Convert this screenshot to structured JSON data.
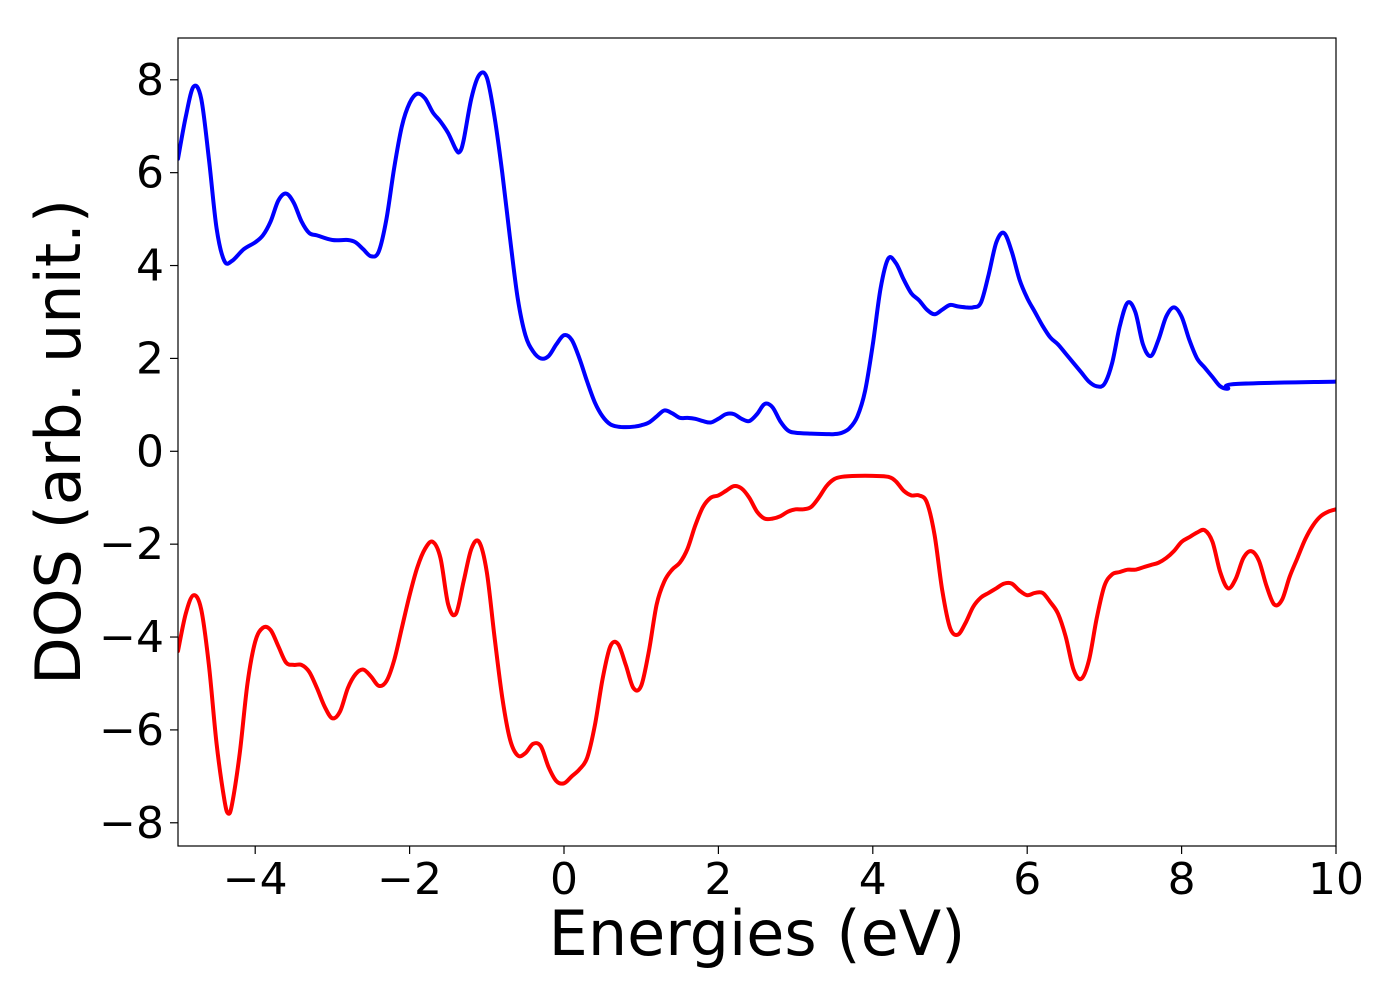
{
  "chart_data": {
    "type": "line",
    "xlabel": "Energies (eV)",
    "ylabel": "DOS (arb. unit.)",
    "xlim": [
      -5,
      10
    ],
    "ylim": [
      -8.5,
      8.9
    ],
    "xticks": [
      -4,
      -2,
      0,
      2,
      4,
      6,
      8,
      10
    ],
    "xtick_labels": [
      "−4",
      "−2",
      "0",
      "2",
      "4",
      "6",
      "8",
      "10"
    ],
    "yticks": [
      8,
      6,
      4,
      2,
      0,
      -2,
      -4,
      -6,
      -8
    ],
    "ytick_labels": [
      "8",
      "6",
      "4",
      "2",
      "0",
      "−2",
      "−4",
      "−6",
      "−8"
    ],
    "grid": false,
    "legend": "none",
    "series": [
      {
        "color": "#0000ff",
        "points": [
          [
            -5.0,
            6.3
          ],
          [
            -4.9,
            7.2
          ],
          [
            -4.8,
            7.85
          ],
          [
            -4.7,
            7.6
          ],
          [
            -4.6,
            6.3
          ],
          [
            -4.5,
            4.8
          ],
          [
            -4.4,
            4.1
          ],
          [
            -4.3,
            4.1
          ],
          [
            -4.15,
            4.35
          ],
          [
            -4.0,
            4.5
          ],
          [
            -3.9,
            4.65
          ],
          [
            -3.8,
            4.95
          ],
          [
            -3.7,
            5.4
          ],
          [
            -3.6,
            5.55
          ],
          [
            -3.5,
            5.35
          ],
          [
            -3.4,
            4.95
          ],
          [
            -3.3,
            4.7
          ],
          [
            -3.2,
            4.65
          ],
          [
            -3.0,
            4.55
          ],
          [
            -2.8,
            4.55
          ],
          [
            -2.7,
            4.5
          ],
          [
            -2.6,
            4.35
          ],
          [
            -2.5,
            4.2
          ],
          [
            -2.4,
            4.3
          ],
          [
            -2.3,
            5.0
          ],
          [
            -2.2,
            6.1
          ],
          [
            -2.1,
            7.0
          ],
          [
            -2.0,
            7.5
          ],
          [
            -1.9,
            7.7
          ],
          [
            -1.8,
            7.6
          ],
          [
            -1.7,
            7.3
          ],
          [
            -1.6,
            7.1
          ],
          [
            -1.5,
            6.85
          ],
          [
            -1.4,
            6.5
          ],
          [
            -1.35,
            6.45
          ],
          [
            -1.3,
            6.7
          ],
          [
            -1.2,
            7.6
          ],
          [
            -1.1,
            8.1
          ],
          [
            -1.0,
            8.05
          ],
          [
            -0.9,
            7.2
          ],
          [
            -0.8,
            6.0
          ],
          [
            -0.7,
            4.6
          ],
          [
            -0.6,
            3.3
          ],
          [
            -0.5,
            2.5
          ],
          [
            -0.4,
            2.15
          ],
          [
            -0.3,
            2.0
          ],
          [
            -0.2,
            2.05
          ],
          [
            -0.1,
            2.3
          ],
          [
            0.0,
            2.5
          ],
          [
            0.1,
            2.4
          ],
          [
            0.2,
            2.0
          ],
          [
            0.3,
            1.5
          ],
          [
            0.4,
            1.05
          ],
          [
            0.5,
            0.75
          ],
          [
            0.6,
            0.58
          ],
          [
            0.7,
            0.53
          ],
          [
            0.8,
            0.52
          ],
          [
            0.9,
            0.53
          ],
          [
            1.0,
            0.56
          ],
          [
            1.1,
            0.62
          ],
          [
            1.2,
            0.75
          ],
          [
            1.3,
            0.88
          ],
          [
            1.4,
            0.82
          ],
          [
            1.5,
            0.72
          ],
          [
            1.6,
            0.72
          ],
          [
            1.7,
            0.7
          ],
          [
            1.8,
            0.65
          ],
          [
            1.9,
            0.62
          ],
          [
            2.0,
            0.7
          ],
          [
            2.1,
            0.8
          ],
          [
            2.2,
            0.8
          ],
          [
            2.3,
            0.7
          ],
          [
            2.4,
            0.65
          ],
          [
            2.5,
            0.8
          ],
          [
            2.6,
            1.02
          ],
          [
            2.7,
            0.95
          ],
          [
            2.8,
            0.65
          ],
          [
            2.9,
            0.45
          ],
          [
            3.0,
            0.4
          ],
          [
            3.2,
            0.38
          ],
          [
            3.4,
            0.37
          ],
          [
            3.5,
            0.37
          ],
          [
            3.6,
            0.4
          ],
          [
            3.7,
            0.5
          ],
          [
            3.8,
            0.75
          ],
          [
            3.9,
            1.3
          ],
          [
            4.0,
            2.3
          ],
          [
            4.1,
            3.5
          ],
          [
            4.2,
            4.15
          ],
          [
            4.3,
            4.05
          ],
          [
            4.4,
            3.7
          ],
          [
            4.5,
            3.4
          ],
          [
            4.6,
            3.25
          ],
          [
            4.7,
            3.05
          ],
          [
            4.8,
            2.95
          ],
          [
            4.9,
            3.05
          ],
          [
            5.0,
            3.15
          ],
          [
            5.1,
            3.12
          ],
          [
            5.2,
            3.1
          ],
          [
            5.3,
            3.1
          ],
          [
            5.4,
            3.2
          ],
          [
            5.5,
            3.8
          ],
          [
            5.6,
            4.5
          ],
          [
            5.7,
            4.7
          ],
          [
            5.8,
            4.3
          ],
          [
            5.9,
            3.7
          ],
          [
            6.0,
            3.3
          ],
          [
            6.1,
            3.0
          ],
          [
            6.2,
            2.7
          ],
          [
            6.3,
            2.45
          ],
          [
            6.4,
            2.3
          ],
          [
            6.5,
            2.1
          ],
          [
            6.6,
            1.9
          ],
          [
            6.7,
            1.7
          ],
          [
            6.8,
            1.5
          ],
          [
            6.9,
            1.4
          ],
          [
            7.0,
            1.45
          ],
          [
            7.1,
            1.9
          ],
          [
            7.2,
            2.7
          ],
          [
            7.3,
            3.2
          ],
          [
            7.4,
            3.0
          ],
          [
            7.5,
            2.3
          ],
          [
            7.6,
            2.05
          ],
          [
            7.7,
            2.4
          ],
          [
            7.8,
            2.9
          ],
          [
            7.9,
            3.1
          ],
          [
            8.0,
            2.9
          ],
          [
            8.1,
            2.4
          ],
          [
            8.2,
            2.0
          ],
          [
            8.3,
            1.8
          ],
          [
            8.4,
            1.6
          ],
          [
            8.5,
            1.4
          ],
          [
            8.6,
            1.35
          ],
          [
            8.7,
            1.45
          ],
          [
            10.0,
            1.5
          ]
        ]
      },
      {
        "color": "#ff0000",
        "points": [
          [
            -5.0,
            -4.3
          ],
          [
            -4.9,
            -3.5
          ],
          [
            -4.8,
            -3.1
          ],
          [
            -4.7,
            -3.4
          ],
          [
            -4.6,
            -4.6
          ],
          [
            -4.5,
            -6.3
          ],
          [
            -4.4,
            -7.5
          ],
          [
            -4.35,
            -7.8
          ],
          [
            -4.3,
            -7.6
          ],
          [
            -4.2,
            -6.5
          ],
          [
            -4.1,
            -5.0
          ],
          [
            -4.0,
            -4.1
          ],
          [
            -3.9,
            -3.8
          ],
          [
            -3.8,
            -3.85
          ],
          [
            -3.7,
            -4.2
          ],
          [
            -3.6,
            -4.55
          ],
          [
            -3.5,
            -4.6
          ],
          [
            -3.4,
            -4.6
          ],
          [
            -3.3,
            -4.75
          ],
          [
            -3.2,
            -5.1
          ],
          [
            -3.1,
            -5.5
          ],
          [
            -3.0,
            -5.75
          ],
          [
            -2.9,
            -5.6
          ],
          [
            -2.8,
            -5.1
          ],
          [
            -2.7,
            -4.8
          ],
          [
            -2.6,
            -4.7
          ],
          [
            -2.5,
            -4.85
          ],
          [
            -2.4,
            -5.05
          ],
          [
            -2.3,
            -4.95
          ],
          [
            -2.2,
            -4.5
          ],
          [
            -2.1,
            -3.8
          ],
          [
            -2.0,
            -3.1
          ],
          [
            -1.9,
            -2.5
          ],
          [
            -1.8,
            -2.1
          ],
          [
            -1.7,
            -1.95
          ],
          [
            -1.6,
            -2.3
          ],
          [
            -1.5,
            -3.3
          ],
          [
            -1.4,
            -3.5
          ],
          [
            -1.3,
            -2.8
          ],
          [
            -1.2,
            -2.1
          ],
          [
            -1.1,
            -1.95
          ],
          [
            -1.0,
            -2.6
          ],
          [
            -0.9,
            -4.0
          ],
          [
            -0.8,
            -5.3
          ],
          [
            -0.7,
            -6.2
          ],
          [
            -0.6,
            -6.55
          ],
          [
            -0.5,
            -6.5
          ],
          [
            -0.4,
            -6.3
          ],
          [
            -0.3,
            -6.35
          ],
          [
            -0.2,
            -6.8
          ],
          [
            -0.1,
            -7.1
          ],
          [
            0.0,
            -7.15
          ],
          [
            0.1,
            -7.0
          ],
          [
            0.2,
            -6.85
          ],
          [
            0.3,
            -6.6
          ],
          [
            0.4,
            -5.9
          ],
          [
            0.5,
            -4.9
          ],
          [
            0.6,
            -4.2
          ],
          [
            0.7,
            -4.15
          ],
          [
            0.8,
            -4.6
          ],
          [
            0.9,
            -5.1
          ],
          [
            1.0,
            -5.05
          ],
          [
            1.1,
            -4.3
          ],
          [
            1.2,
            -3.3
          ],
          [
            1.3,
            -2.8
          ],
          [
            1.4,
            -2.55
          ],
          [
            1.5,
            -2.4
          ],
          [
            1.6,
            -2.1
          ],
          [
            1.7,
            -1.6
          ],
          [
            1.8,
            -1.2
          ],
          [
            1.9,
            -1.0
          ],
          [
            2.0,
            -0.95
          ],
          [
            2.1,
            -0.85
          ],
          [
            2.2,
            -0.75
          ],
          [
            2.3,
            -0.8
          ],
          [
            2.4,
            -1.0
          ],
          [
            2.5,
            -1.3
          ],
          [
            2.6,
            -1.45
          ],
          [
            2.7,
            -1.45
          ],
          [
            2.8,
            -1.4
          ],
          [
            2.9,
            -1.3
          ],
          [
            3.0,
            -1.25
          ],
          [
            3.1,
            -1.25
          ],
          [
            3.2,
            -1.2
          ],
          [
            3.3,
            -1.0
          ],
          [
            3.4,
            -0.75
          ],
          [
            3.5,
            -0.6
          ],
          [
            3.6,
            -0.55
          ],
          [
            3.8,
            -0.53
          ],
          [
            4.0,
            -0.53
          ],
          [
            4.2,
            -0.55
          ],
          [
            4.3,
            -0.65
          ],
          [
            4.4,
            -0.85
          ],
          [
            4.5,
            -0.95
          ],
          [
            4.6,
            -0.95
          ],
          [
            4.7,
            -1.1
          ],
          [
            4.8,
            -1.8
          ],
          [
            4.9,
            -3.0
          ],
          [
            5.0,
            -3.8
          ],
          [
            5.1,
            -3.95
          ],
          [
            5.2,
            -3.7
          ],
          [
            5.3,
            -3.35
          ],
          [
            5.4,
            -3.15
          ],
          [
            5.5,
            -3.05
          ],
          [
            5.6,
            -2.95
          ],
          [
            5.7,
            -2.85
          ],
          [
            5.8,
            -2.85
          ],
          [
            5.9,
            -3.0
          ],
          [
            6.0,
            -3.1
          ],
          [
            6.1,
            -3.05
          ],
          [
            6.2,
            -3.05
          ],
          [
            6.3,
            -3.25
          ],
          [
            6.4,
            -3.5
          ],
          [
            6.5,
            -4.0
          ],
          [
            6.6,
            -4.7
          ],
          [
            6.7,
            -4.9
          ],
          [
            6.8,
            -4.5
          ],
          [
            6.9,
            -3.6
          ],
          [
            7.0,
            -2.9
          ],
          [
            7.1,
            -2.65
          ],
          [
            7.2,
            -2.6
          ],
          [
            7.3,
            -2.55
          ],
          [
            7.4,
            -2.55
          ],
          [
            7.5,
            -2.5
          ],
          [
            7.6,
            -2.45
          ],
          [
            7.7,
            -2.4
          ],
          [
            7.8,
            -2.3
          ],
          [
            7.9,
            -2.15
          ],
          [
            8.0,
            -1.95
          ],
          [
            8.1,
            -1.85
          ],
          [
            8.2,
            -1.75
          ],
          [
            8.3,
            -1.7
          ],
          [
            8.4,
            -1.95
          ],
          [
            8.5,
            -2.6
          ],
          [
            8.6,
            -2.95
          ],
          [
            8.7,
            -2.75
          ],
          [
            8.8,
            -2.3
          ],
          [
            8.9,
            -2.15
          ],
          [
            9.0,
            -2.35
          ],
          [
            9.1,
            -2.9
          ],
          [
            9.2,
            -3.3
          ],
          [
            9.3,
            -3.2
          ],
          [
            9.4,
            -2.7
          ],
          [
            9.5,
            -2.3
          ],
          [
            9.6,
            -1.9
          ],
          [
            9.7,
            -1.6
          ],
          [
            9.8,
            -1.4
          ],
          [
            9.9,
            -1.3
          ],
          [
            10.0,
            -1.25
          ]
        ]
      }
    ]
  }
}
